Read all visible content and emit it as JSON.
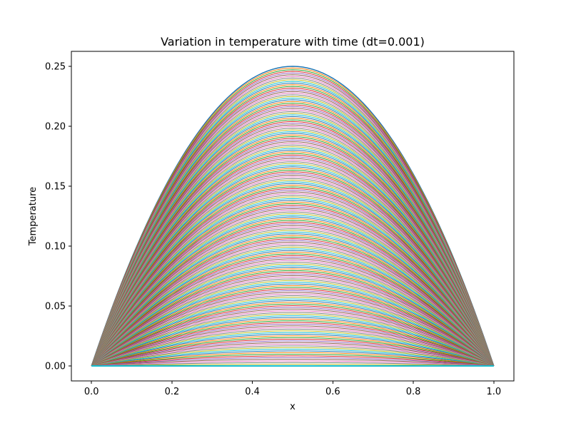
{
  "chart_data": {
    "type": "line",
    "title": "Variation in temperature with time (dt=0.001)",
    "xlabel": "x",
    "ylabel": "Temperature",
    "xlim": [
      -0.05,
      1.05
    ],
    "ylim": [
      -0.0125,
      0.2625
    ],
    "xticks": [
      0.0,
      0.2,
      0.4,
      0.6,
      0.8,
      1.0
    ],
    "xtick_labels": [
      "0.0",
      "0.2",
      "0.4",
      "0.6",
      "0.8",
      "1.0"
    ],
    "yticks": [
      0.0,
      0.05,
      0.1,
      0.15,
      0.2,
      0.25
    ],
    "ytick_labels": [
      "0.00",
      "0.05",
      "0.10",
      "0.15",
      "0.20",
      "0.25"
    ],
    "grid": false,
    "legend": "none",
    "x": [
      0.0,
      0.1,
      0.2,
      0.3,
      0.4,
      0.5,
      0.6,
      0.7,
      0.8,
      0.9,
      1.0
    ],
    "series_family": {
      "description_shape": "x*(1-x) decaying",
      "count": 180,
      "peak_values_start": 0.25,
      "peak_values_end": 0.0
    },
    "colors": [
      "#1f77b4",
      "#ff7f0e",
      "#2ca02c",
      "#d62728",
      "#9467bd",
      "#8c564b",
      "#e377c2",
      "#7f7f7f",
      "#bcbd22",
      "#17becf"
    ]
  }
}
